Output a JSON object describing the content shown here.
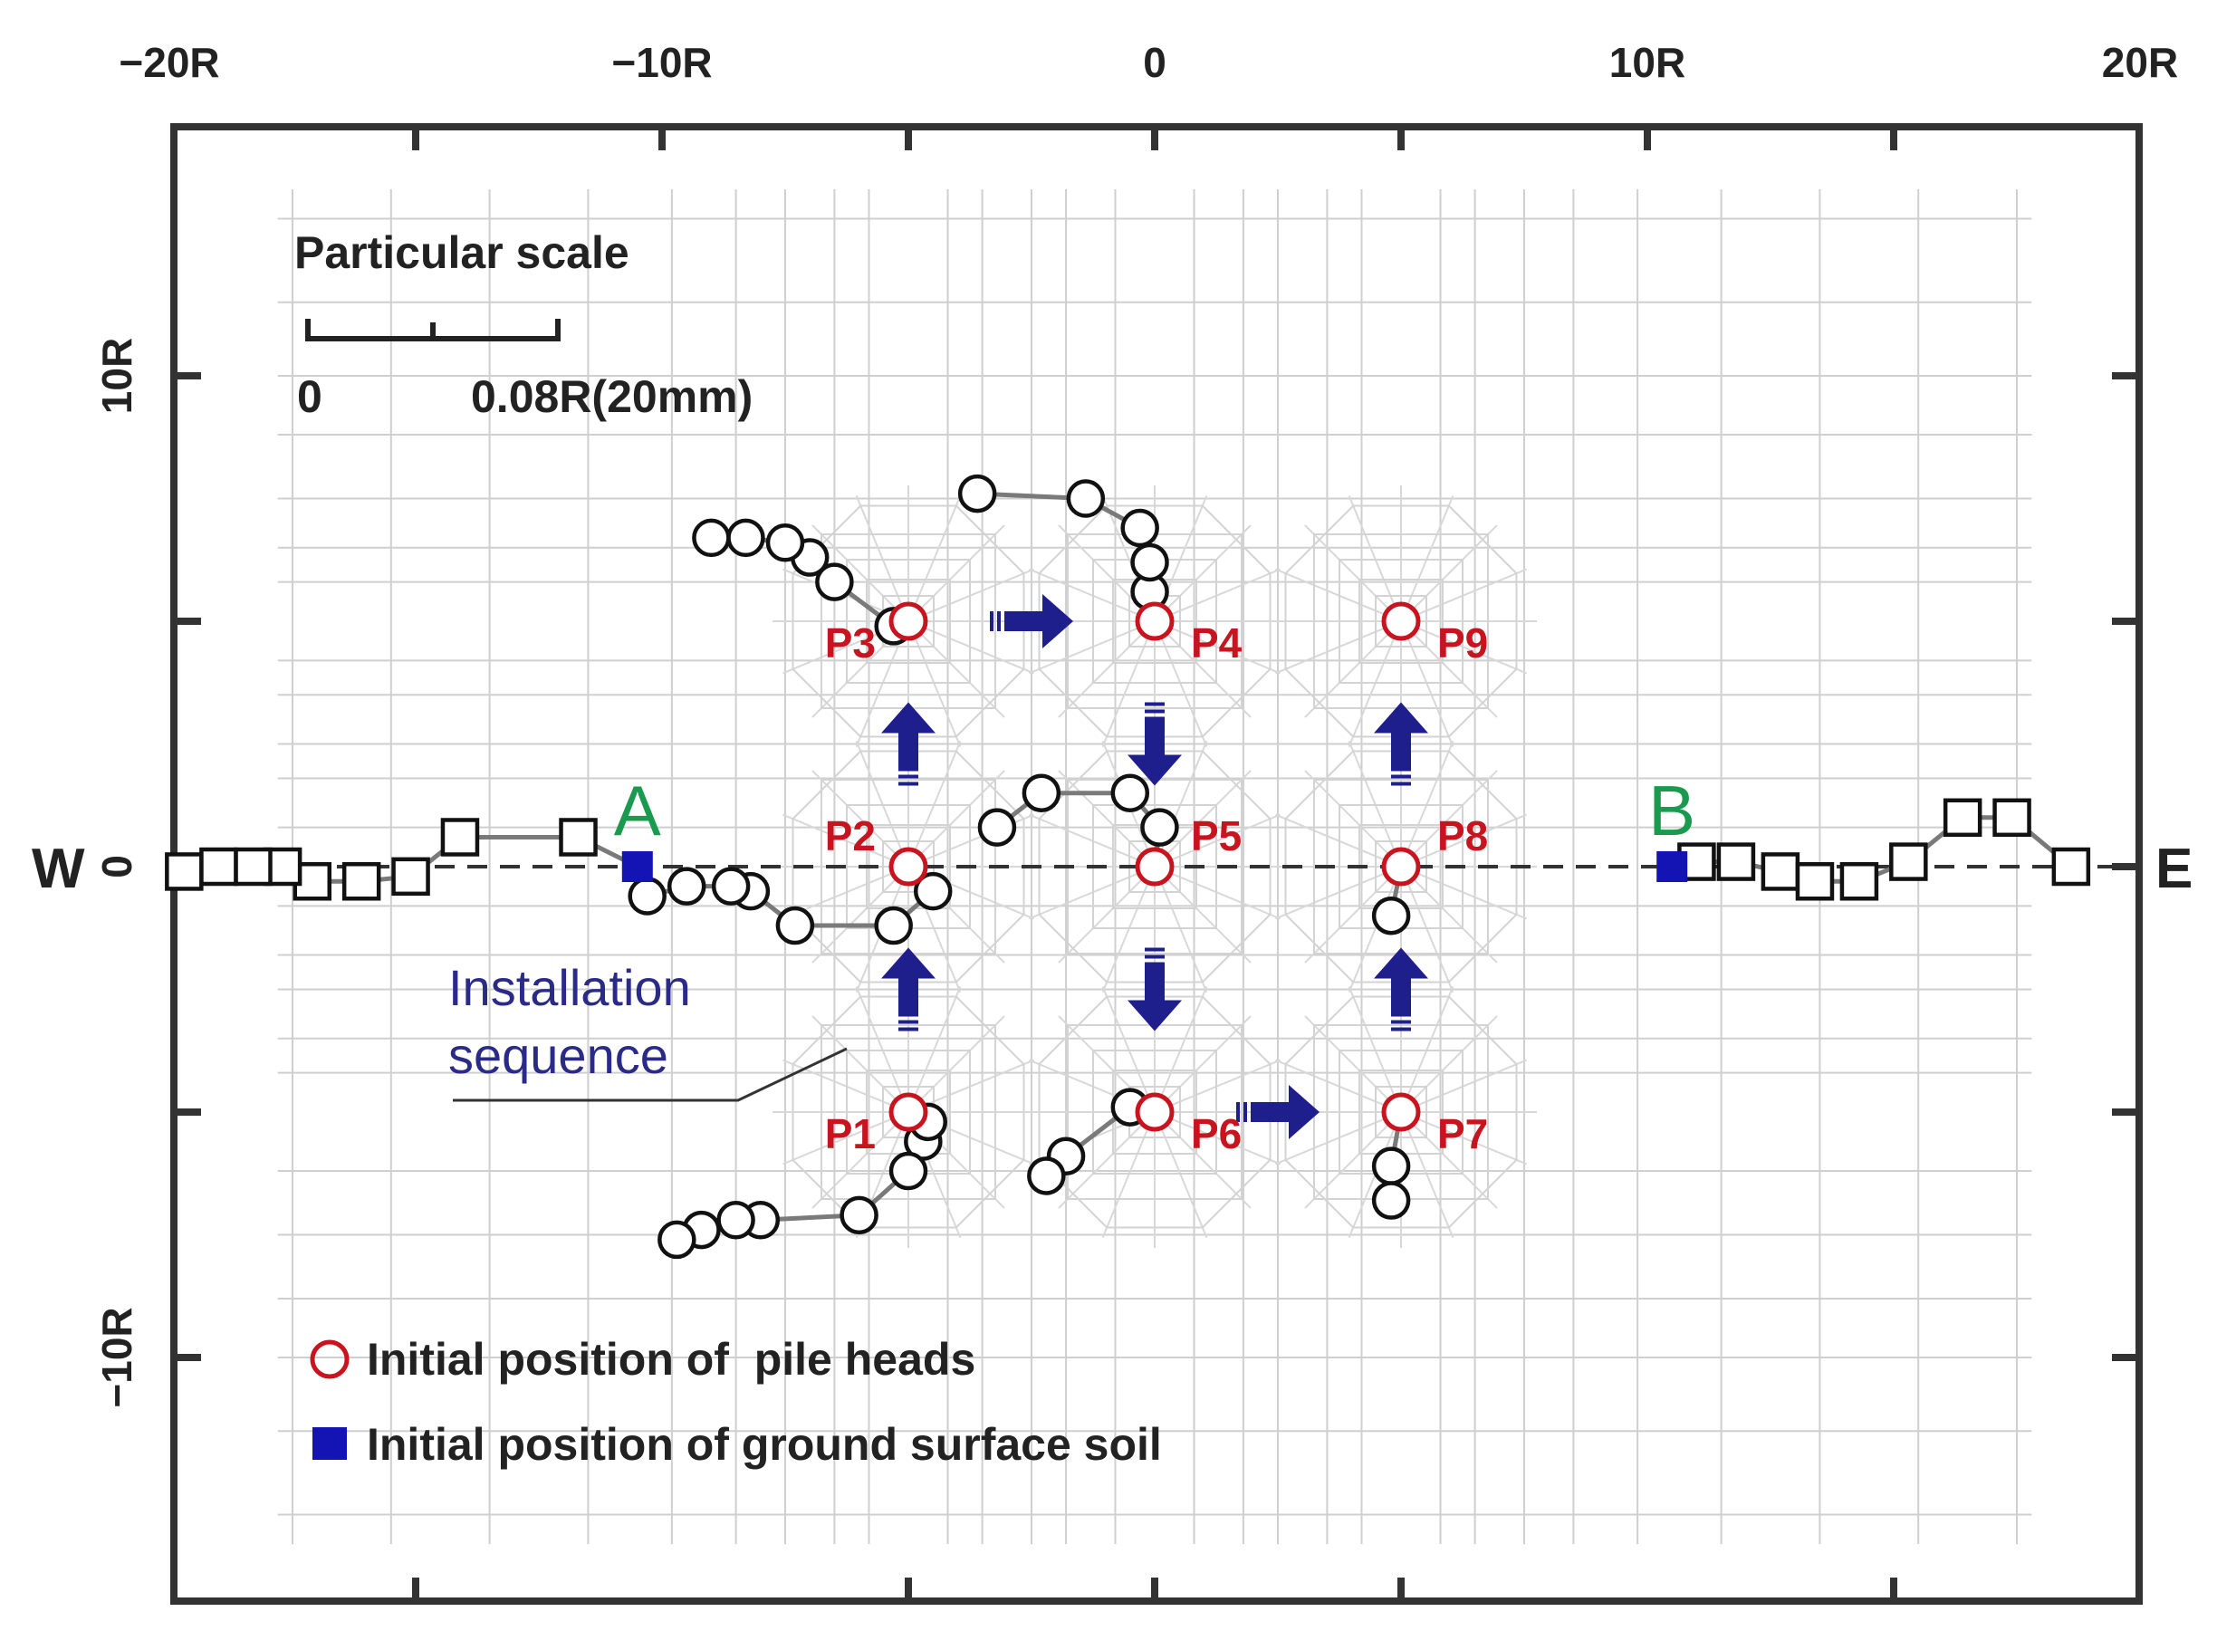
{
  "axes": {
    "x_ticks": [
      {
        "value": -20,
        "label": "−20R"
      },
      {
        "value": -10,
        "label": "−10R"
      },
      {
        "value": 0,
        "label": "0"
      },
      {
        "value": 10,
        "label": "10R"
      },
      {
        "value": 20,
        "label": "20R"
      }
    ],
    "y_ticks": [
      {
        "value": 10,
        "label": "10R"
      },
      {
        "value": 0,
        "label": "0"
      },
      {
        "value": -10,
        "label": "−10R"
      }
    ],
    "west_label": "W",
    "east_label": "E"
  },
  "scale_bar": {
    "title": "Particular scale",
    "zero_label": "0",
    "end_label": "0.08R(20mm)"
  },
  "piles": [
    {
      "name": "P1",
      "x": -5,
      "y": -5
    },
    {
      "name": "P2",
      "x": -5,
      "y": 0
    },
    {
      "name": "P3",
      "x": -5,
      "y": 5
    },
    {
      "name": "P4",
      "x": 0,
      "y": 5
    },
    {
      "name": "P5",
      "x": 0,
      "y": 0
    },
    {
      "name": "P6",
      "x": 0,
      "y": -5
    },
    {
      "name": "P7",
      "x": 5,
      "y": -5
    },
    {
      "name": "P8",
      "x": 5,
      "y": 0
    },
    {
      "name": "P9",
      "x": 5,
      "y": 5
    }
  ],
  "points": {
    "A": {
      "label": "A",
      "x": -10.5,
      "y": 0
    },
    "B": {
      "label": "B",
      "x": 10.5,
      "y": 0
    }
  },
  "installation_label": [
    "Installation",
    "sequence"
  ],
  "legend": {
    "pile_heads": "Initial position of  pile heads",
    "ground_soil": "Initial position of ground surface soil"
  },
  "colors": {
    "pile_red": "#c8141e",
    "soil_blue": "#1414b4",
    "arrow_blue": "#1e1e8c",
    "label_green": "#1a9a4e",
    "path_gray": "#7a7a7a"
  },
  "pile_paths": [
    [
      [
        -5,
        5
      ],
      [
        -5.3,
        4.9
      ],
      [
        -6.5,
        5.8
      ],
      [
        -7.0,
        6.3
      ],
      [
        -7.5,
        6.6
      ],
      [
        -8.3,
        6.7
      ],
      [
        -9.0,
        6.7
      ]
    ],
    [
      [
        0,
        5
      ],
      [
        -0.1,
        5.6
      ],
      [
        -0.1,
        6.2
      ],
      [
        -0.3,
        6.9
      ],
      [
        -1.4,
        7.5
      ],
      [
        -3.6,
        7.6
      ]
    ],
    [
      [
        -5,
        0
      ],
      [
        -4.5,
        -0.5
      ],
      [
        -5.3,
        -1.2
      ],
      [
        -7.3,
        -1.2
      ],
      [
        -8.2,
        -0.5
      ],
      [
        -8.6,
        -0.4
      ],
      [
        -9.5,
        -0.4
      ],
      [
        -10.3,
        -0.6
      ]
    ],
    [
      [
        0,
        0
      ],
      [
        0.1,
        0.8
      ],
      [
        -0.5,
        1.5
      ],
      [
        -2.3,
        1.5
      ],
      [
        -3.2,
        0.8
      ]
    ],
    [
      [
        5,
        0
      ],
      [
        4.8,
        -1.0
      ]
    ],
    [
      [
        -5,
        -5
      ],
      [
        -4.7,
        -5.6
      ],
      [
        -4.6,
        -5.2
      ],
      [
        -5,
        -6.2
      ],
      [
        -6.0,
        -7.1
      ],
      [
        -8.0,
        -7.2
      ],
      [
        -8.5,
        -7.2
      ],
      [
        -9.2,
        -7.4
      ],
      [
        -9.7,
        -7.6
      ]
    ],
    [
      [
        0,
        -5
      ],
      [
        -0.5,
        -4.9
      ],
      [
        -1.8,
        -5.9
      ],
      [
        -2.2,
        -6.3
      ]
    ],
    [
      [
        5,
        -5
      ],
      [
        4.8,
        -6.1
      ],
      [
        4.8,
        -6.8
      ]
    ]
  ],
  "soil_paths": [
    [
      [
        -10.5,
        0
      ],
      [
        -11.7,
        0.6
      ],
      [
        -14.1,
        0.6
      ],
      [
        -15.1,
        -0.2
      ],
      [
        -16.1,
        -0.3
      ],
      [
        -17.1,
        -0.3
      ],
      [
        -17.7,
        0
      ],
      [
        -18.3,
        0
      ],
      [
        -19.0,
        0
      ],
      [
        -19.7,
        -0.1
      ]
    ],
    [
      [
        10.5,
        0
      ],
      [
        11.0,
        0.1
      ],
      [
        11.8,
        0.1
      ],
      [
        12.7,
        -0.1
      ],
      [
        13.4,
        -0.3
      ],
      [
        14.3,
        -0.3
      ],
      [
        15.3,
        0.1
      ],
      [
        16.4,
        1.0
      ],
      [
        17.4,
        1.0
      ],
      [
        18.6,
        0
      ]
    ]
  ],
  "sequence_arrows": [
    {
      "from": "P1",
      "to": "P2"
    },
    {
      "from": "P2",
      "to": "P3"
    },
    {
      "from": "P3",
      "to": "P4"
    },
    {
      "from": "P4",
      "to": "P5"
    },
    {
      "from": "P5",
      "to": "P6"
    },
    {
      "from": "P6",
      "to": "P7"
    },
    {
      "from": "P7",
      "to": "P8"
    },
    {
      "from": "P8",
      "to": "P9"
    }
  ]
}
